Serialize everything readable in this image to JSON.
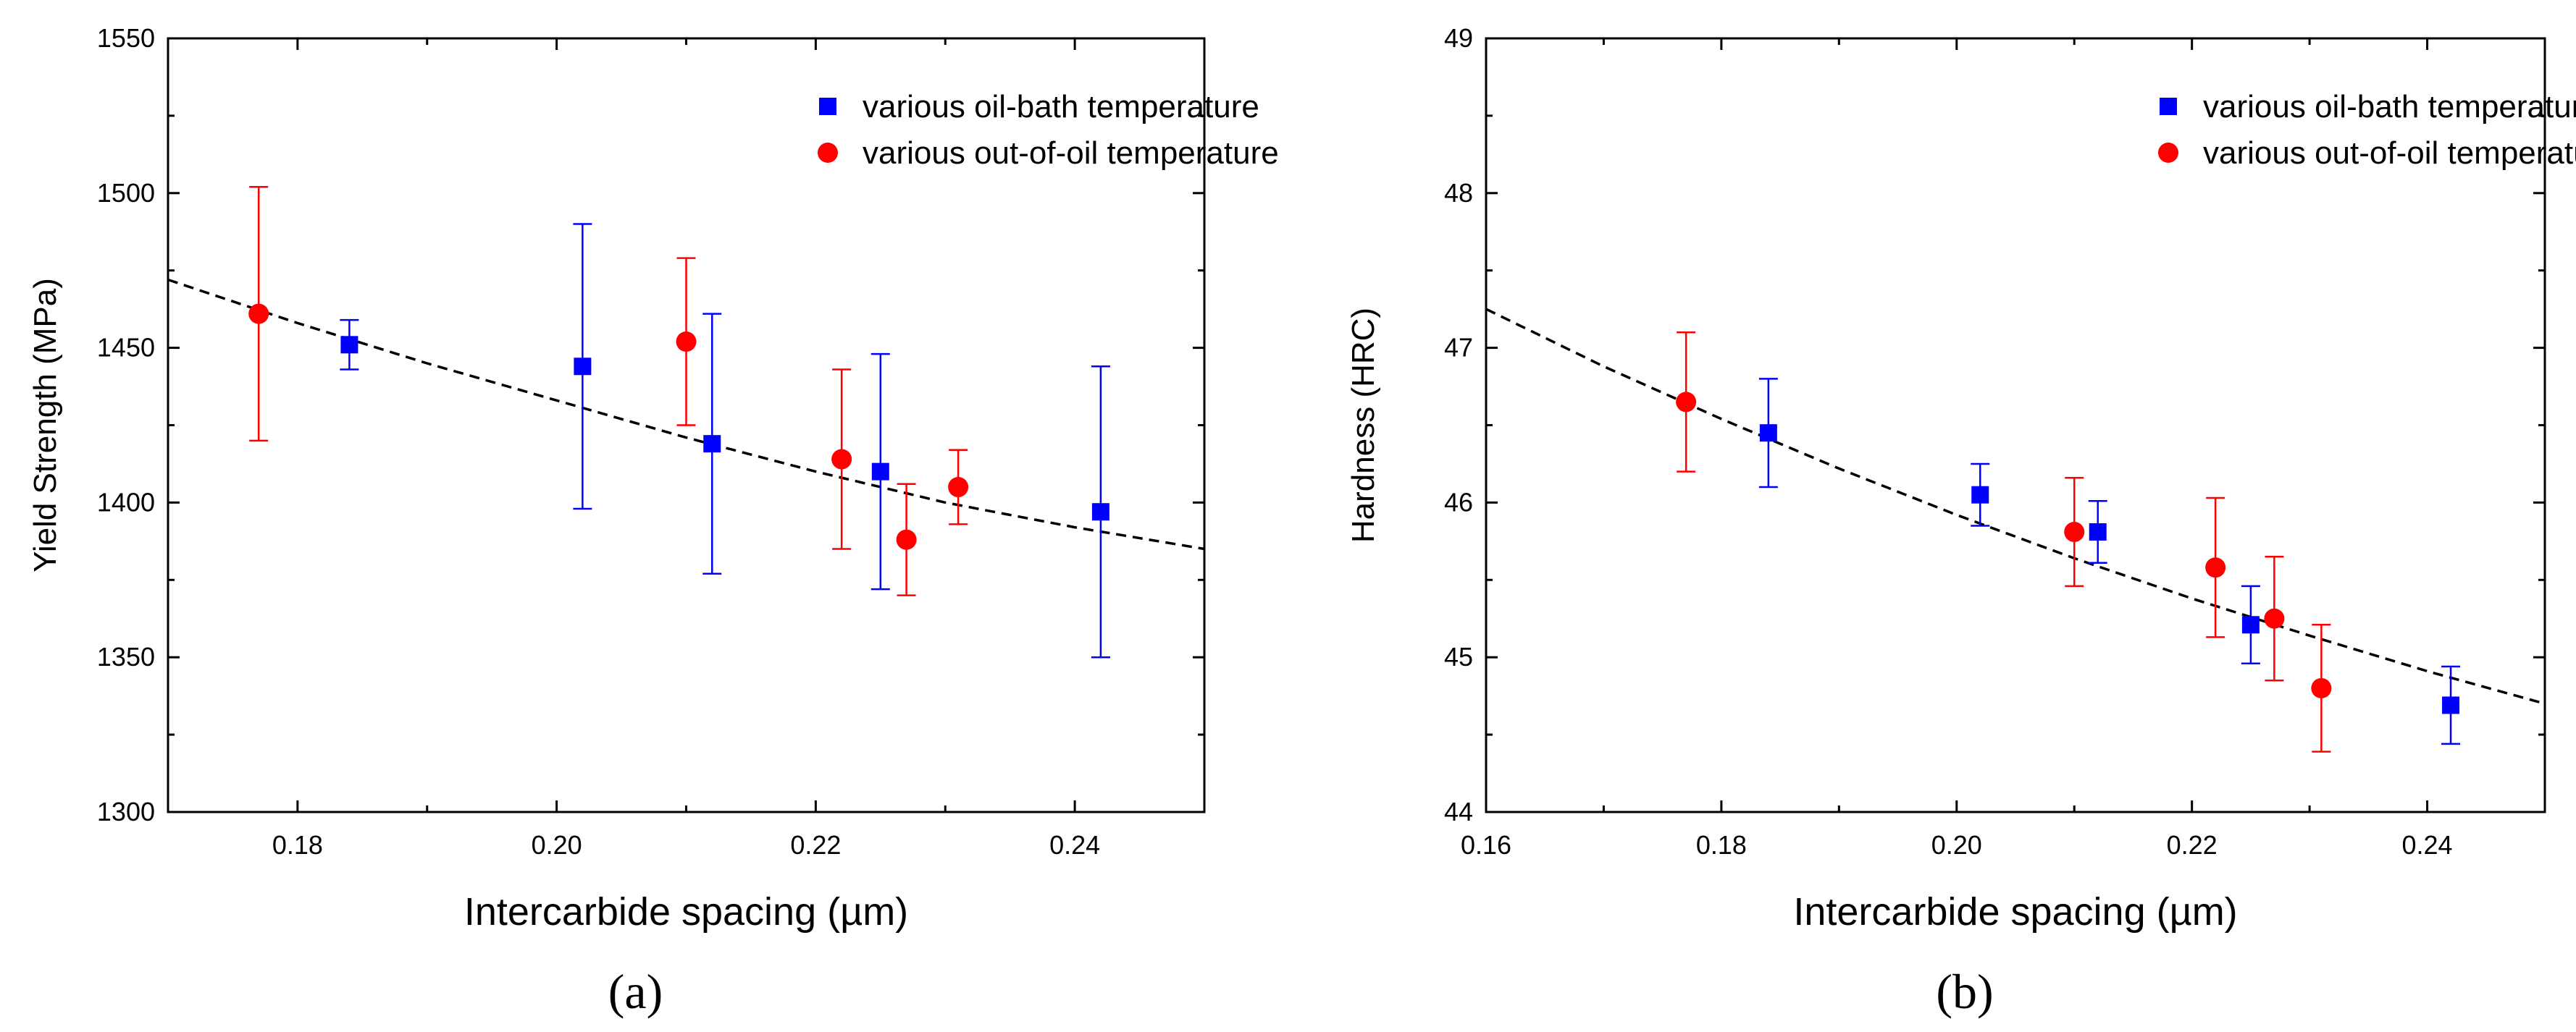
{
  "chart_data": [
    {
      "type": "scatter",
      "panel_label": "(a)",
      "xlabel": "Intercarbide spacing (µm)",
      "ylabel": "Yield Strength (MPa)",
      "xlim": [
        0.17,
        0.25
      ],
      "ylim": [
        1300,
        1550
      ],
      "xticks": [
        0.18,
        0.2,
        0.22,
        0.24
      ],
      "xtick_labels": [
        "0.18",
        "0.20",
        "0.22",
        "0.24"
      ],
      "yticks": [
        1300,
        1350,
        1400,
        1450,
        1500,
        1550
      ],
      "ytick_labels": [
        "1300",
        "1350",
        "1400",
        "1450",
        "1500",
        "1550"
      ],
      "grid": false,
      "legend_position": "top-right",
      "series": [
        {
          "name": "various oil-bath temperature",
          "marker": "square",
          "color": "#0000ff",
          "points": [
            {
              "x": 0.184,
              "y": 1451,
              "err": 8
            },
            {
              "x": 0.202,
              "y": 1444,
              "err": 46
            },
            {
              "x": 0.212,
              "y": 1419,
              "err": 42
            },
            {
              "x": 0.225,
              "y": 1410,
              "err": 38
            },
            {
              "x": 0.242,
              "y": 1397,
              "err": 47
            }
          ]
        },
        {
          "name": "various out-of-oil temperature",
          "marker": "circle",
          "color": "#ff0000",
          "points": [
            {
              "x": 0.177,
              "y": 1461,
              "err": 41
            },
            {
              "x": 0.21,
              "y": 1452,
              "err": 27
            },
            {
              "x": 0.222,
              "y": 1414,
              "err": 29
            },
            {
              "x": 0.227,
              "y": 1388,
              "err": 18
            },
            {
              "x": 0.231,
              "y": 1405,
              "err": 12
            }
          ]
        }
      ],
      "fit_line": {
        "style": "dashed",
        "color": "#000000",
        "x": [
          0.17,
          0.18,
          0.19,
          0.2,
          0.21,
          0.22,
          0.23,
          0.24,
          0.25
        ],
        "y": [
          1472,
          1458,
          1445,
          1433,
          1421,
          1410,
          1400,
          1392,
          1385
        ]
      }
    },
    {
      "type": "scatter",
      "panel_label": "(b)",
      "xlabel": "Intercarbide spacing (µm)",
      "ylabel": "Hardness (HRC)",
      "xlim": [
        0.16,
        0.25
      ],
      "ylim": [
        44,
        49
      ],
      "xticks": [
        0.16,
        0.18,
        0.2,
        0.22,
        0.24
      ],
      "xtick_labels": [
        "0.16",
        "0.18",
        "0.20",
        "0.22",
        "0.24"
      ],
      "yticks": [
        44,
        45,
        46,
        47,
        48,
        49
      ],
      "ytick_labels": [
        "44",
        "45",
        "46",
        "47",
        "48",
        "49"
      ],
      "grid": false,
      "legend_position": "top-right",
      "series": [
        {
          "name": "various oil-bath temperature",
          "marker": "square",
          "color": "#0000ff",
          "points": [
            {
              "x": 0.184,
              "y": 46.45,
              "err": 0.35
            },
            {
              "x": 0.202,
              "y": 46.05,
              "err": 0.2
            },
            {
              "x": 0.212,
              "y": 45.81,
              "err": 0.2
            },
            {
              "x": 0.225,
              "y": 45.21,
              "err": 0.25
            },
            {
              "x": 0.242,
              "y": 44.69,
              "err": 0.25
            }
          ]
        },
        {
          "name": "various out-of-oil temperature",
          "marker": "circle",
          "color": "#ff0000",
          "points": [
            {
              "x": 0.177,
              "y": 46.65,
              "err": 0.45
            },
            {
              "x": 0.21,
              "y": 45.81,
              "err": 0.35
            },
            {
              "x": 0.222,
              "y": 45.58,
              "err": 0.45
            },
            {
              "x": 0.227,
              "y": 45.25,
              "err": 0.4
            },
            {
              "x": 0.231,
              "y": 44.8,
              "err": 0.41
            }
          ]
        }
      ],
      "fit_line": {
        "style": "dashed",
        "color": "#000000",
        "x": [
          0.16,
          0.17,
          0.18,
          0.19,
          0.2,
          0.21,
          0.22,
          0.23,
          0.24,
          0.25
        ],
        "y": [
          47.25,
          46.88,
          46.54,
          46.22,
          45.92,
          45.64,
          45.38,
          45.14,
          44.91,
          44.7
        ]
      }
    }
  ]
}
